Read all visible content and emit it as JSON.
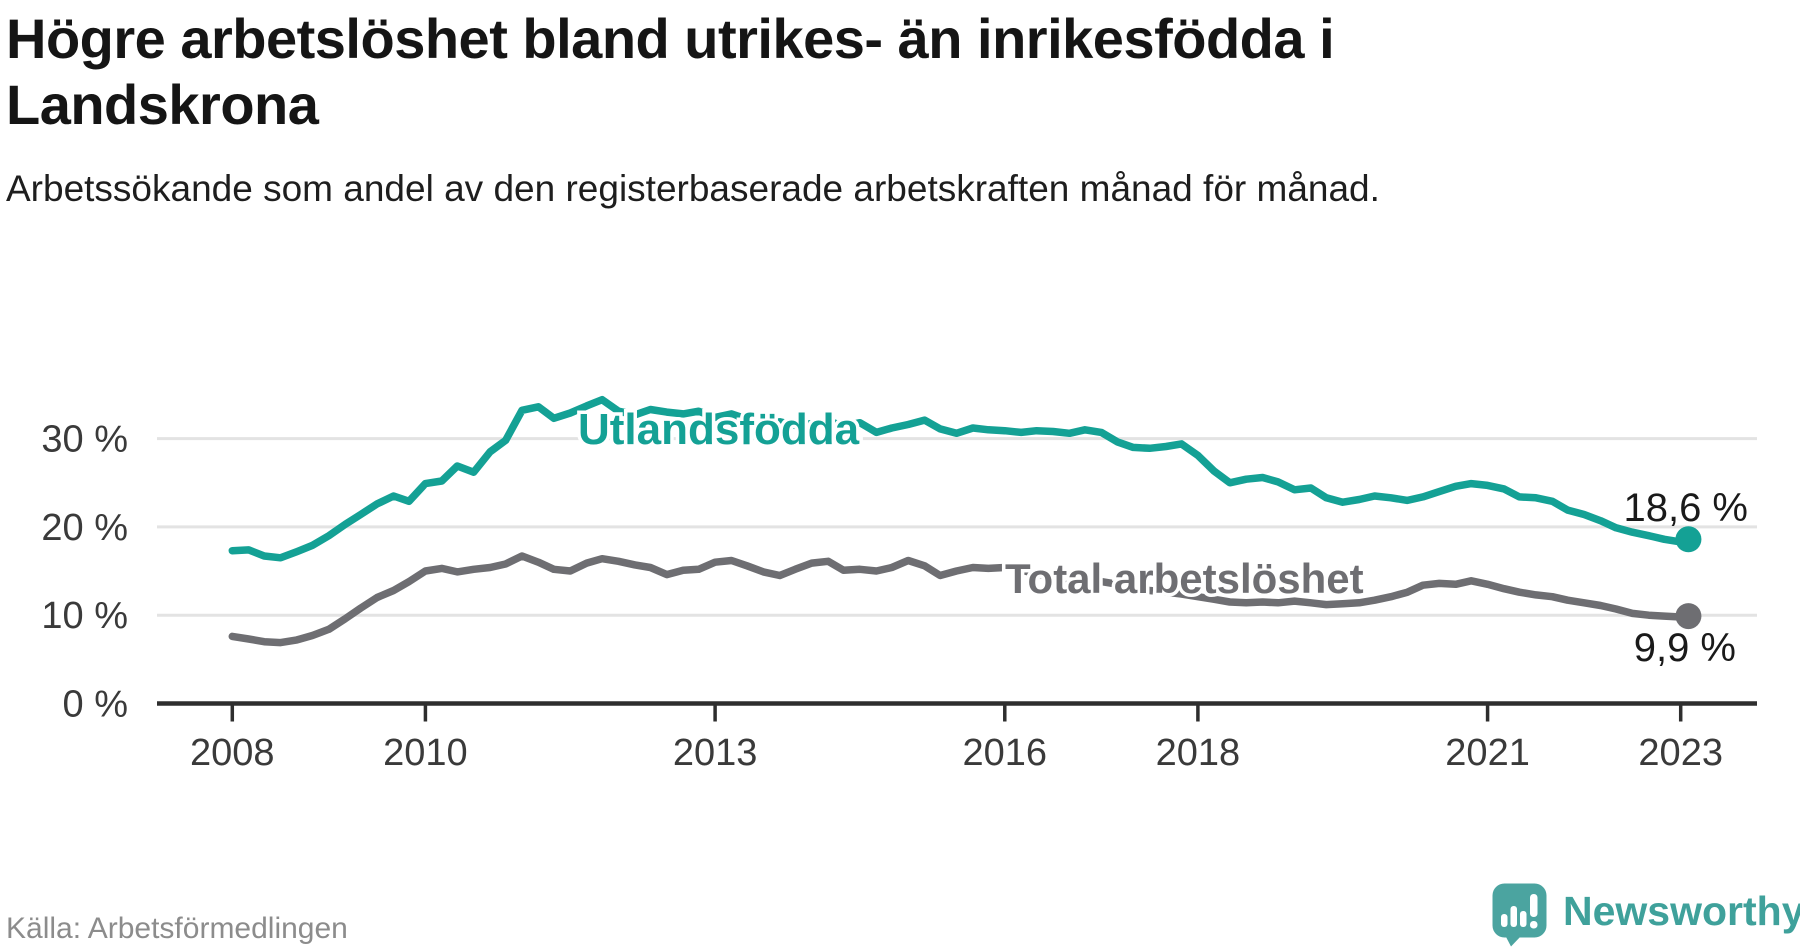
{
  "chart_data": {
    "type": "line",
    "title": "Högre arbetslöshet bland utrikes- än inrikesfödda i Landskrona",
    "subtitle": "Arbetssökande som andel av den registerbaserade arbetskraften månad för månad.",
    "source": "Källa: Arbetsförmedlingen",
    "x_axis": {
      "min": 2007.22,
      "max": 2023.79,
      "ticks": [
        2008,
        2010,
        2013,
        2016,
        2018,
        2021,
        2023
      ],
      "grid": false
    },
    "y_axis": {
      "min": 0,
      "max": 38,
      "ticks": [
        0,
        10,
        20,
        30
      ],
      "tick_suffix": " %",
      "grid": true
    },
    "legend": "inline-labels",
    "series": [
      {
        "name": "Utlandsfödda",
        "color": "#14a195",
        "end_label": "18,6 %",
        "end_value": 18.6,
        "points": [
          [
            2008.0,
            17.3
          ],
          [
            2008.17,
            17.4
          ],
          [
            2008.33,
            16.7
          ],
          [
            2008.5,
            16.5
          ],
          [
            2008.67,
            17.2
          ],
          [
            2008.83,
            17.9
          ],
          [
            2009.0,
            19.0
          ],
          [
            2009.17,
            20.3
          ],
          [
            2009.33,
            21.4
          ],
          [
            2009.5,
            22.6
          ],
          [
            2009.67,
            23.5
          ],
          [
            2009.83,
            22.9
          ],
          [
            2010.0,
            24.9
          ],
          [
            2010.17,
            25.2
          ],
          [
            2010.33,
            26.9
          ],
          [
            2010.5,
            26.2
          ],
          [
            2010.67,
            28.5
          ],
          [
            2010.83,
            29.8
          ],
          [
            2011.0,
            33.2
          ],
          [
            2011.17,
            33.6
          ],
          [
            2011.33,
            32.3
          ],
          [
            2011.5,
            32.9
          ],
          [
            2011.67,
            33.7
          ],
          [
            2011.83,
            34.4
          ],
          [
            2012.0,
            33.1
          ],
          [
            2012.17,
            32.7
          ],
          [
            2012.33,
            33.3
          ],
          [
            2012.5,
            33.0
          ],
          [
            2012.67,
            32.8
          ],
          [
            2012.83,
            33.1
          ],
          [
            2013.0,
            32.4
          ],
          [
            2013.17,
            32.8
          ],
          [
            2013.33,
            32.2
          ],
          [
            2013.5,
            31.7
          ],
          [
            2013.67,
            31.9
          ],
          [
            2013.83,
            31.5
          ],
          [
            2014.0,
            31.7
          ],
          [
            2014.17,
            32.0
          ],
          [
            2014.33,
            31.4
          ],
          [
            2014.5,
            31.8
          ],
          [
            2014.67,
            30.7
          ],
          [
            2014.83,
            31.2
          ],
          [
            2015.0,
            31.6
          ],
          [
            2015.17,
            32.1
          ],
          [
            2015.33,
            31.1
          ],
          [
            2015.5,
            30.6
          ],
          [
            2015.67,
            31.2
          ],
          [
            2015.83,
            31.0
          ],
          [
            2016.0,
            30.9
          ],
          [
            2016.17,
            30.7
          ],
          [
            2016.33,
            30.9
          ],
          [
            2016.5,
            30.8
          ],
          [
            2016.67,
            30.6
          ],
          [
            2016.83,
            31.0
          ],
          [
            2017.0,
            30.7
          ],
          [
            2017.17,
            29.6
          ],
          [
            2017.33,
            29.0
          ],
          [
            2017.5,
            28.9
          ],
          [
            2017.67,
            29.1
          ],
          [
            2017.83,
            29.4
          ],
          [
            2018.0,
            28.1
          ],
          [
            2018.17,
            26.3
          ],
          [
            2018.33,
            25.0
          ],
          [
            2018.5,
            25.4
          ],
          [
            2018.67,
            25.6
          ],
          [
            2018.83,
            25.1
          ],
          [
            2019.0,
            24.2
          ],
          [
            2019.17,
            24.4
          ],
          [
            2019.33,
            23.3
          ],
          [
            2019.5,
            22.8
          ],
          [
            2019.67,
            23.1
          ],
          [
            2019.83,
            23.5
          ],
          [
            2020.0,
            23.3
          ],
          [
            2020.17,
            23.0
          ],
          [
            2020.33,
            23.4
          ],
          [
            2020.5,
            24.0
          ],
          [
            2020.67,
            24.6
          ],
          [
            2020.83,
            24.9
          ],
          [
            2021.0,
            24.7
          ],
          [
            2021.17,
            24.3
          ],
          [
            2021.33,
            23.4
          ],
          [
            2021.5,
            23.3
          ],
          [
            2021.67,
            22.9
          ],
          [
            2021.83,
            21.9
          ],
          [
            2022.0,
            21.4
          ],
          [
            2022.17,
            20.7
          ],
          [
            2022.33,
            19.9
          ],
          [
            2022.5,
            19.4
          ],
          [
            2022.67,
            19.0
          ],
          [
            2022.83,
            18.6
          ],
          [
            2023.0,
            18.3
          ],
          [
            2023.08,
            18.6
          ]
        ]
      },
      {
        "name": "Total arbetslöshet",
        "color": "#6e6e72",
        "end_label": "9,9 %",
        "end_value": 9.9,
        "points": [
          [
            2008.0,
            7.6
          ],
          [
            2008.17,
            7.3
          ],
          [
            2008.33,
            7.0
          ],
          [
            2008.5,
            6.9
          ],
          [
            2008.67,
            7.2
          ],
          [
            2008.83,
            7.7
          ],
          [
            2009.0,
            8.4
          ],
          [
            2009.17,
            9.6
          ],
          [
            2009.33,
            10.8
          ],
          [
            2009.5,
            12.0
          ],
          [
            2009.67,
            12.8
          ],
          [
            2009.83,
            13.8
          ],
          [
            2010.0,
            15.0
          ],
          [
            2010.17,
            15.3
          ],
          [
            2010.33,
            14.9
          ],
          [
            2010.5,
            15.2
          ],
          [
            2010.67,
            15.4
          ],
          [
            2010.83,
            15.8
          ],
          [
            2011.0,
            16.7
          ],
          [
            2011.17,
            16.0
          ],
          [
            2011.33,
            15.2
          ],
          [
            2011.5,
            15.0
          ],
          [
            2011.67,
            15.9
          ],
          [
            2011.83,
            16.4
          ],
          [
            2012.0,
            16.1
          ],
          [
            2012.17,
            15.7
          ],
          [
            2012.33,
            15.4
          ],
          [
            2012.5,
            14.6
          ],
          [
            2012.67,
            15.1
          ],
          [
            2012.83,
            15.2
          ],
          [
            2013.0,
            16.0
          ],
          [
            2013.17,
            16.2
          ],
          [
            2013.33,
            15.6
          ],
          [
            2013.5,
            14.9
          ],
          [
            2013.67,
            14.5
          ],
          [
            2013.83,
            15.2
          ],
          [
            2014.0,
            15.9
          ],
          [
            2014.17,
            16.1
          ],
          [
            2014.33,
            15.1
          ],
          [
            2014.5,
            15.2
          ],
          [
            2014.67,
            15.0
          ],
          [
            2014.83,
            15.4
          ],
          [
            2015.0,
            16.2
          ],
          [
            2015.17,
            15.6
          ],
          [
            2015.33,
            14.5
          ],
          [
            2015.5,
            15.0
          ],
          [
            2015.67,
            15.4
          ],
          [
            2015.83,
            15.3
          ],
          [
            2016.0,
            15.4
          ],
          [
            2016.17,
            15.1
          ],
          [
            2016.33,
            14.7
          ],
          [
            2016.5,
            14.3
          ],
          [
            2016.67,
            14.0
          ],
          [
            2016.83,
            13.9
          ],
          [
            2017.0,
            13.8
          ],
          [
            2017.17,
            13.5
          ],
          [
            2017.33,
            13.1
          ],
          [
            2017.5,
            12.8
          ],
          [
            2017.67,
            12.6
          ],
          [
            2017.83,
            12.4
          ],
          [
            2018.0,
            12.1
          ],
          [
            2018.17,
            11.8
          ],
          [
            2018.33,
            11.5
          ],
          [
            2018.5,
            11.4
          ],
          [
            2018.67,
            11.5
          ],
          [
            2018.83,
            11.4
          ],
          [
            2019.0,
            11.6
          ],
          [
            2019.17,
            11.4
          ],
          [
            2019.33,
            11.2
          ],
          [
            2019.5,
            11.3
          ],
          [
            2019.67,
            11.4
          ],
          [
            2019.83,
            11.7
          ],
          [
            2020.0,
            12.1
          ],
          [
            2020.17,
            12.6
          ],
          [
            2020.33,
            13.4
          ],
          [
            2020.5,
            13.6
          ],
          [
            2020.67,
            13.5
          ],
          [
            2020.83,
            13.9
          ],
          [
            2021.0,
            13.5
          ],
          [
            2021.17,
            13.0
          ],
          [
            2021.33,
            12.6
          ],
          [
            2021.5,
            12.3
          ],
          [
            2021.67,
            12.1
          ],
          [
            2021.83,
            11.7
          ],
          [
            2022.0,
            11.4
          ],
          [
            2022.17,
            11.1
          ],
          [
            2022.33,
            10.7
          ],
          [
            2022.5,
            10.2
          ],
          [
            2022.67,
            10.0
          ],
          [
            2022.83,
            9.9
          ],
          [
            2023.0,
            9.8
          ],
          [
            2023.08,
            9.9
          ]
        ]
      }
    ]
  },
  "footer": {
    "brand": "Newsworthy"
  },
  "colors": {
    "accent_teal": "#14a195",
    "series_gray": "#6e6e72",
    "gridline": "#e3e3e3",
    "axis": "#2e2e2e",
    "tick_text": "#3a3a3a",
    "value_text": "#1a1a1a",
    "logo_teal": "#4ba4a0",
    "brand_text": "#3fa19b"
  },
  "icons": {
    "logo": "newsworthy-speech-bubble-chart-icon"
  }
}
